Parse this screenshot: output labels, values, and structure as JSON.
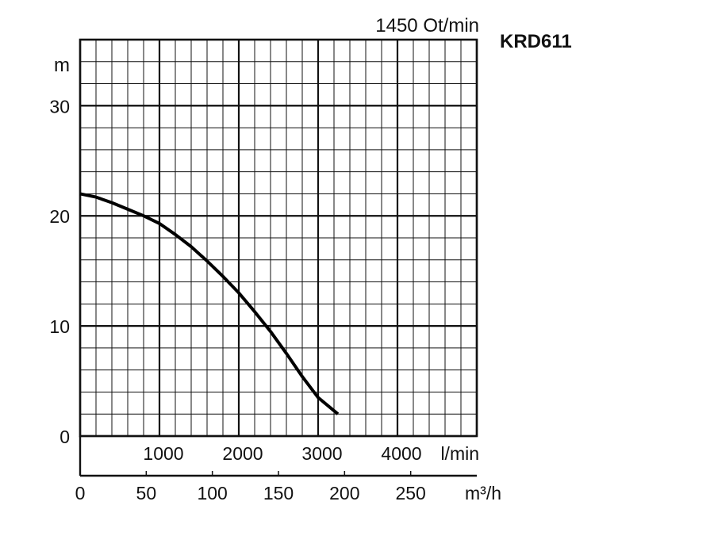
{
  "chart_data": {
    "type": "line",
    "title": "KRD611",
    "speed_label": "1450 Ot/min",
    "ylabel": "m",
    "ylim": [
      0,
      36
    ],
    "y_ticks": [
      0,
      10,
      20,
      30
    ],
    "xlim_lmin": [
      0,
      5000
    ],
    "x_ticks_lmin": [
      1000,
      2000,
      3000,
      4000
    ],
    "x_unit_lmin": "l/min",
    "x_ticks_m3h": [
      0,
      50,
      100,
      150,
      200,
      250
    ],
    "x_unit_m3h": "m³/h",
    "grid": true,
    "series": [
      {
        "x": [
          0,
          200,
          400,
          600,
          800,
          1000,
          1200,
          1400,
          1600,
          1800,
          2000,
          2200,
          2400,
          2600,
          2800,
          3000,
          3250
        ],
        "y": [
          22.0,
          21.7,
          21.2,
          20.6,
          20.0,
          19.3,
          18.3,
          17.2,
          15.9,
          14.5,
          13.0,
          11.3,
          9.5,
          7.5,
          5.4,
          3.5,
          2.0
        ]
      }
    ]
  }
}
